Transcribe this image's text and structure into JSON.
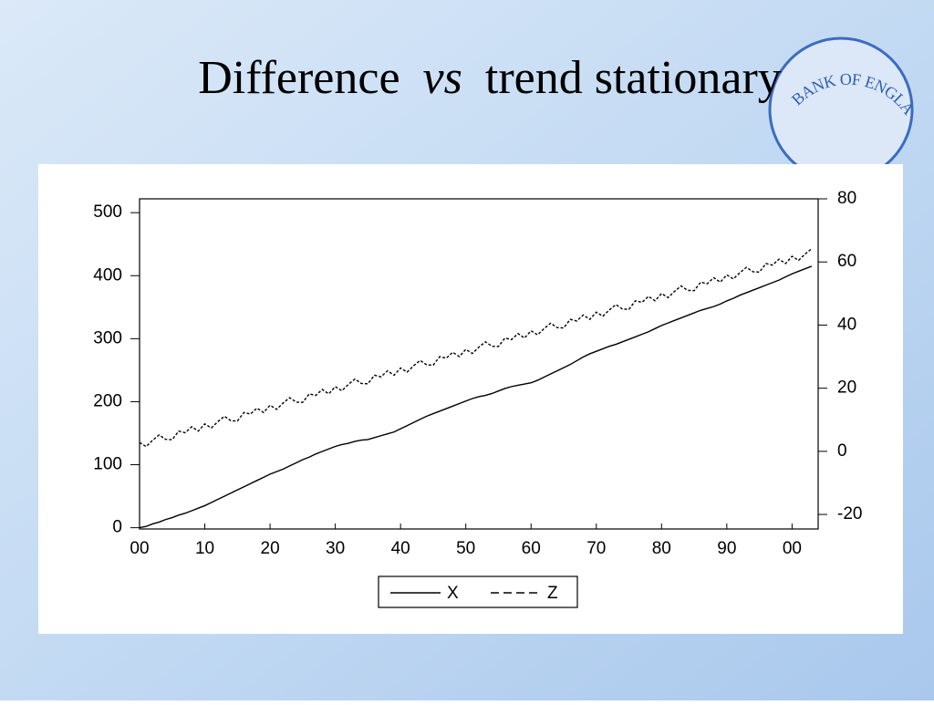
{
  "slide": {
    "title_parts": [
      "Difference",
      "vs",
      "trend stationary"
    ],
    "logo_text": "BANK OF ENGLAND"
  },
  "chart_data": {
    "type": "line",
    "x": [
      0,
      1,
      2,
      3,
      4,
      5,
      6,
      7,
      8,
      9,
      10,
      11,
      12,
      13,
      14,
      15,
      16,
      17,
      18,
      19,
      20,
      21,
      22,
      23,
      24,
      25,
      26,
      27,
      28,
      29,
      30,
      31,
      32,
      33,
      34,
      35,
      36,
      37,
      38,
      39,
      40,
      41,
      42,
      43,
      44,
      45,
      46,
      47,
      48,
      49,
      50,
      51,
      52,
      53,
      54,
      55,
      56,
      57,
      58,
      59,
      60,
      61,
      62,
      63,
      64,
      65,
      66,
      67,
      68,
      69,
      70,
      71,
      72,
      73,
      74,
      75,
      76,
      77,
      78,
      79,
      80,
      81,
      82,
      83,
      84,
      85,
      86,
      87,
      88,
      89,
      90,
      91,
      92,
      93,
      94,
      95,
      96,
      97,
      98,
      99,
      100,
      101,
      102,
      103
    ],
    "series": [
      {
        "name": "X",
        "color": "#000000",
        "dash": "solid",
        "axis": "y",
        "values": [
          0,
          2,
          6,
          9,
          13,
          16,
          20,
          23,
          27,
          31,
          35,
          40,
          45,
          50,
          55,
          60,
          65,
          70,
          75,
          80,
          85,
          89,
          93,
          98,
          103,
          108,
          112,
          117,
          121,
          125,
          129,
          132,
          134,
          137,
          139,
          140,
          143,
          146,
          149,
          152,
          157,
          162,
          167,
          172,
          177,
          181,
          185,
          189,
          193,
          197,
          201,
          205,
          208,
          210,
          213,
          217,
          221,
          224,
          226,
          228,
          230,
          234,
          239,
          244,
          249,
          254,
          259,
          265,
          271,
          276,
          280,
          284,
          288,
          291,
          295,
          299,
          303,
          307,
          311,
          316,
          321,
          325,
          329,
          333,
          337,
          341,
          345,
          348,
          351,
          355,
          360,
          364,
          369,
          373,
          377,
          381,
          385,
          389,
          393,
          398,
          403,
          407,
          411,
          415
        ]
      },
      {
        "name": "Z",
        "color": "#000000",
        "dash": "dashed",
        "axis": "y2",
        "values": [
          2.8,
          1.5,
          3.5,
          5.2,
          3.8,
          3.7,
          6.4,
          5.9,
          7.8,
          6.4,
          8.7,
          7.4,
          9.4,
          11.1,
          9.7,
          9.6,
          12.3,
          11.8,
          13.7,
          12.3,
          14.6,
          13.3,
          15.3,
          17.0,
          15.6,
          15.5,
          18.2,
          17.7,
          19.6,
          18.2,
          20.5,
          19.2,
          21.2,
          22.9,
          21.5,
          21.4,
          24.1,
          23.6,
          25.5,
          24.1,
          26.4,
          25.1,
          27.1,
          28.8,
          27.4,
          27.3,
          30.0,
          29.5,
          31.4,
          30.0,
          32.3,
          31.0,
          33.0,
          34.7,
          33.3,
          33.2,
          35.9,
          35.4,
          37.3,
          35.9,
          38.2,
          36.9,
          38.9,
          40.6,
          39.2,
          39.1,
          41.8,
          41.3,
          43.2,
          41.8,
          44.1,
          42.8,
          44.8,
          46.5,
          45.1,
          45.0,
          47.7,
          47.2,
          49.1,
          47.7,
          50.0,
          48.7,
          50.7,
          52.4,
          51.0,
          50.9,
          53.6,
          53.1,
          55.0,
          53.6,
          55.9,
          54.6,
          56.6,
          58.3,
          56.9,
          56.8,
          59.5,
          59.0,
          60.9,
          59.5,
          61.8,
          60.5,
          62.5,
          64.2
        ]
      }
    ],
    "xlim": [
      0,
      104
    ],
    "xticks": [
      {
        "value": 0,
        "label": "00"
      },
      10,
      20,
      30,
      40,
      50,
      60,
      70,
      80,
      90,
      {
        "value": 100,
        "label": "00"
      }
    ],
    "ylim": [
      -2,
      522
    ],
    "yticks": [
      0,
      100,
      200,
      300,
      400,
      500
    ],
    "y2lim": [
      -24.6,
      80
    ],
    "y2ticks": [
      -20,
      0,
      20,
      40,
      60,
      80
    ],
    "legend": "bottom"
  }
}
